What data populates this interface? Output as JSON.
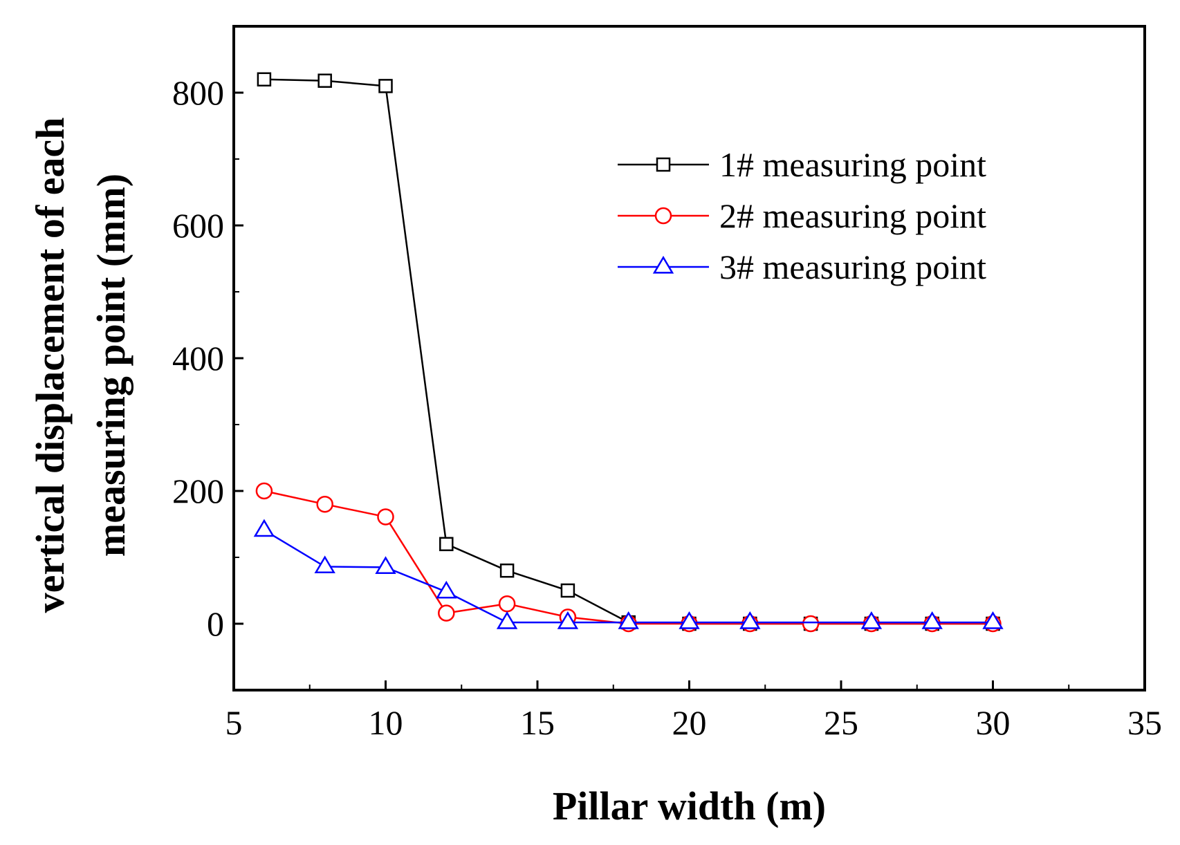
{
  "chart_data": {
    "type": "line",
    "title": "",
    "xlabel": "Pillar width (m)",
    "ylabel_line1": "vertical displacement of each",
    "ylabel_line2": "measuring point (mm)",
    "xlim": [
      5,
      35
    ],
    "ylim": [
      -100,
      900
    ],
    "xticks": [
      5,
      10,
      15,
      20,
      25,
      30,
      35
    ],
    "yticks": [
      0,
      200,
      400,
      600,
      800
    ],
    "grid": false,
    "legend_position": "top-right",
    "series": [
      {
        "name": "1# measuring point",
        "color": "#000000",
        "marker": "square",
        "x": [
          6,
          8,
          10,
          12,
          14,
          16,
          18,
          20,
          22,
          24,
          26,
          28,
          30
        ],
        "y": [
          820,
          818,
          810,
          120,
          80,
          50,
          2,
          0,
          0,
          0,
          0,
          0,
          0
        ]
      },
      {
        "name": "2# measuring point",
        "color": "#ff0000",
        "marker": "circle",
        "x": [
          6,
          8,
          10,
          12,
          14,
          16,
          18,
          20,
          22,
          24,
          26,
          28,
          30
        ],
        "y": [
          200,
          180,
          161,
          16,
          30,
          10,
          0,
          0,
          0,
          0,
          0,
          0,
          0
        ]
      },
      {
        "name": "3# measuring point",
        "color": "#0000ff",
        "marker": "triangle",
        "x": [
          6,
          8,
          10,
          12,
          14,
          16,
          18,
          20,
          22,
          26,
          28,
          30
        ],
        "y": [
          141,
          86,
          85,
          48,
          2,
          2,
          2,
          2,
          2,
          2,
          2,
          2
        ]
      }
    ]
  }
}
